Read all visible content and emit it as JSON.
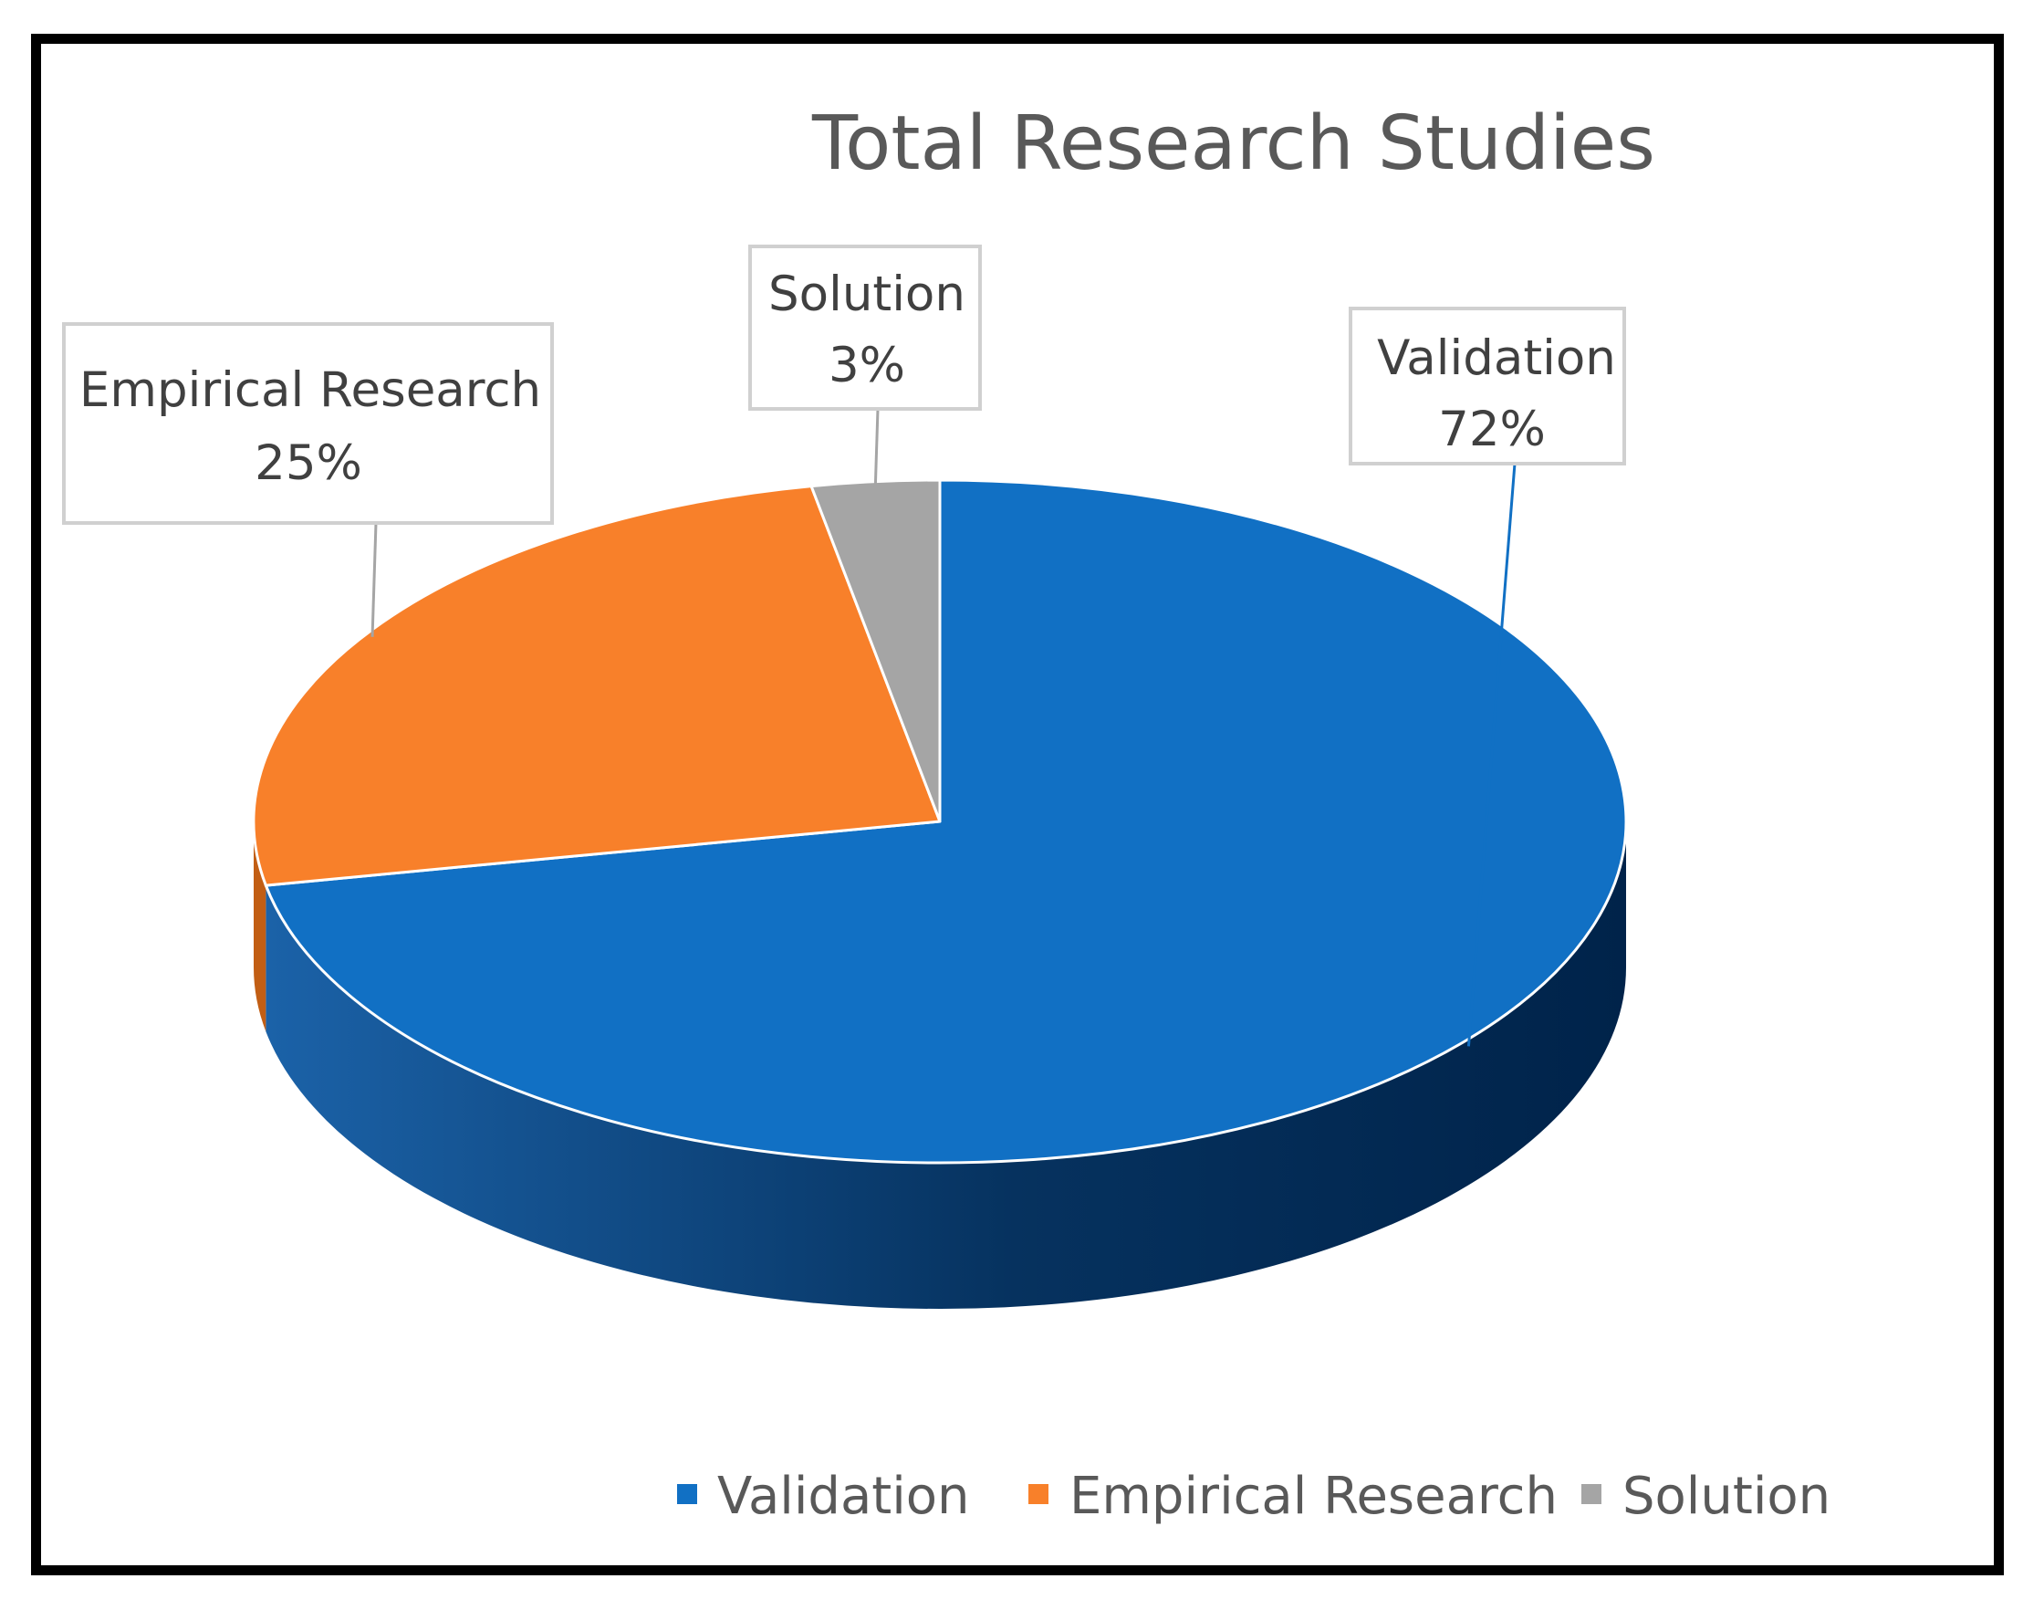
{
  "chart_data": {
    "type": "pie",
    "title": "Total Research Studies",
    "style": "3d",
    "slices": [
      {
        "name": "Validation",
        "label": "Validation",
        "value": 72,
        "value_label": "72%",
        "color": "#1170C4",
        "side_color": "#0A4F8C"
      },
      {
        "name": "Empirical Research",
        "label": "Empirical Research",
        "value": 25,
        "value_label": "25%",
        "color": "#F8802A",
        "side_color": "#C25E14"
      },
      {
        "name": "Solution",
        "label": "Solution",
        "value": 3,
        "value_label": "3%",
        "color": "#A5A5A5",
        "side_color": "#7A7A7A"
      }
    ],
    "legend": {
      "placement": "bottom",
      "entries": [
        "Validation",
        "Empirical Research",
        "Solution"
      ]
    }
  }
}
